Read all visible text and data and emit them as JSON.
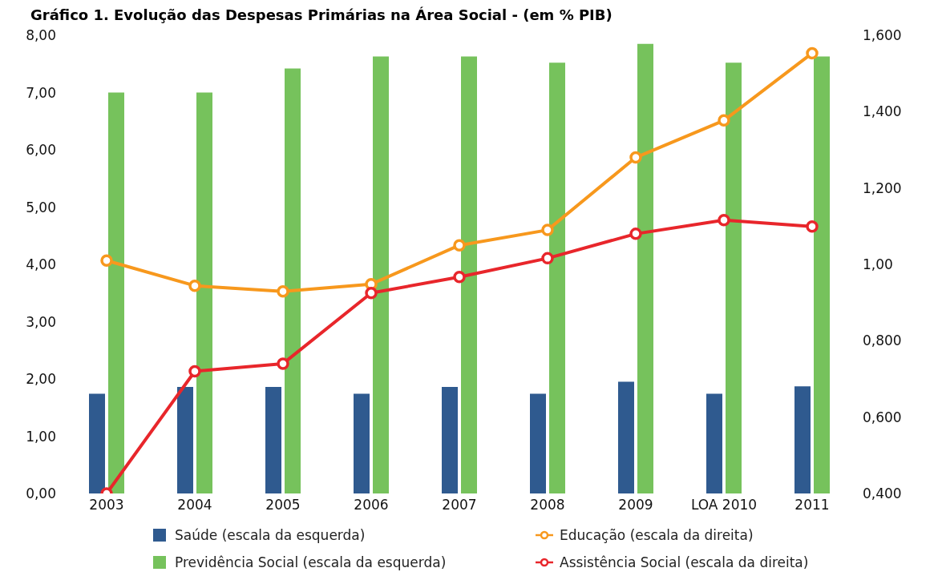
{
  "chart_data": {
    "type": "bar",
    "title": "Gráfico 1. Evolução das Despesas Primárias na Área Social - (em % PIB)",
    "categories": [
      "2003",
      "2004",
      "2005",
      "2006",
      "2007",
      "2008",
      "2009",
      "LOA 2010",
      "2011"
    ],
    "series": [
      {
        "name": "Saúde (escala da esquerda)",
        "color": "#2f5a8f",
        "values": [
          1.74,
          1.86,
          1.86,
          1.74,
          1.86,
          1.74,
          1.95,
          1.74,
          1.87
        ]
      },
      {
        "name": "Previdência Social  (escala da esquerda)",
        "color": "#76c25c",
        "values": [
          7.0,
          7.0,
          7.42,
          7.63,
          7.63,
          7.52,
          7.85,
          7.52,
          7.63
        ]
      },
      {
        "name": "Educação (escala da direita)",
        "type": "line",
        "axis": "y2",
        "color": "#f7981d",
        "values": [
          1.01,
          0.944,
          0.929,
          0.948,
          1.05,
          1.09,
          1.28,
          1.377,
          1.553
        ]
      },
      {
        "name": "Assistência Social (escala da direita)",
        "type": "line",
        "axis": "y2",
        "color": "#e8262b",
        "values": [
          0.4,
          0.72,
          0.74,
          0.925,
          0.967,
          1.016,
          1.08,
          1.116,
          1.099
        ]
      }
    ],
    "ylim": [
      0,
      8
    ],
    "yticks": [
      {
        "value": 0,
        "label": "0,00"
      },
      {
        "value": 1,
        "label": "1,00"
      },
      {
        "value": 2,
        "label": "2,00"
      },
      {
        "value": 3,
        "label": "3,00"
      },
      {
        "value": 4,
        "label": "4,00"
      },
      {
        "value": 5,
        "label": "5,00"
      },
      {
        "value": 6,
        "label": "6,00"
      },
      {
        "value": 7,
        "label": "7,00"
      },
      {
        "value": 8,
        "label": "8,00"
      }
    ],
    "y2lim": [
      0.4,
      1.6
    ],
    "y2ticks": [
      {
        "value": 0.4,
        "label": "0,400"
      },
      {
        "value": 0.6,
        "label": "0,600"
      },
      {
        "value": 0.8,
        "label": "0,800"
      },
      {
        "value": 1.0,
        "label": "1,00"
      },
      {
        "value": 1.2,
        "label": "1,200"
      },
      {
        "value": 1.4,
        "label": "1,400"
      },
      {
        "value": 1.6,
        "label": "1,600"
      }
    ],
    "marker": "circle",
    "legend": "bottom",
    "grid": false
  }
}
